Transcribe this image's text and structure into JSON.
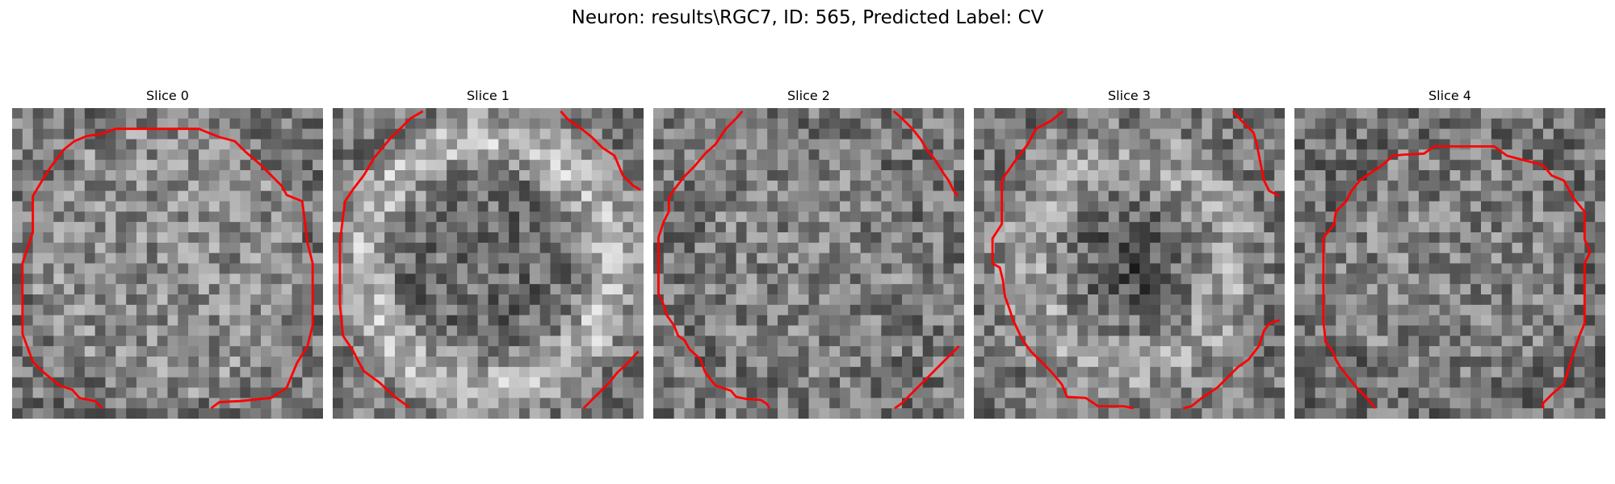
{
  "figure": {
    "title": "Neuron: results\\RGC7, ID: 565, Predicted Label: CV"
  },
  "slices": [
    {
      "label": "Slice 0",
      "index": 0,
      "contour_color": "#ff0000"
    },
    {
      "label": "Slice 1",
      "index": 1,
      "contour_color": "#ff0000"
    },
    {
      "label": "Slice 2",
      "index": 2,
      "contour_color": "#ff0000"
    },
    {
      "label": "Slice 3",
      "index": 3,
      "contour_color": "#ff0000"
    },
    {
      "label": "Slice 4",
      "index": 4,
      "contour_color": "#ff0000"
    }
  ],
  "colors": {
    "contour": "#ff0000",
    "colormap": "grayscale"
  }
}
